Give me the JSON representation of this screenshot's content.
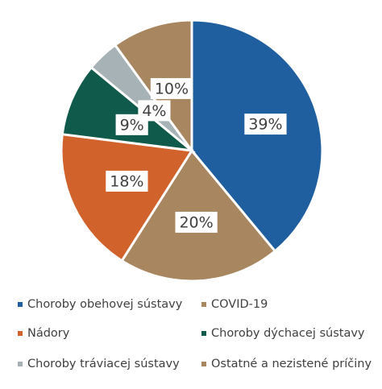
{
  "chart_data": {
    "type": "pie",
    "categories": [
      "Choroby obehovej sústavy",
      "COVID-19",
      "Nádory",
      "Choroby dýchacej sústavy",
      "Choroby tráviacej sústavy",
      "Ostatné a nezistené príčiny"
    ],
    "values": [
      39,
      20,
      18,
      9,
      4,
      10
    ],
    "value_labels": [
      "39%",
      "20%",
      "18%",
      "9%",
      "4%",
      "10%"
    ],
    "colors": [
      "#1f5f9f",
      "#a88660",
      "#d1622b",
      "#0f5a4b",
      "#a7b2b7",
      "#a88660"
    ]
  }
}
